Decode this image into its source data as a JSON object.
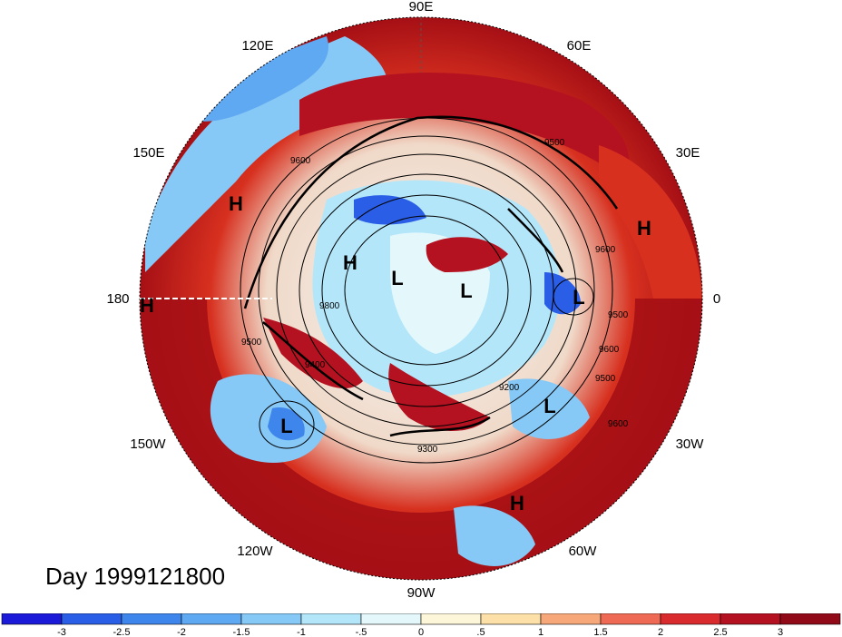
{
  "map": {
    "projection": "north polar stereographic",
    "longitude_labels": [
      "90E",
      "60E",
      "30E",
      "0",
      "30W",
      "60W",
      "90W",
      "120W",
      "150W",
      "180",
      "150E",
      "120E"
    ],
    "highs": [
      "H",
      "H",
      "H",
      "H",
      "H"
    ],
    "lows": [
      "L",
      "L",
      "L",
      "L",
      "L"
    ],
    "contour_labels": [
      "9500",
      "9600",
      "9500",
      "9600",
      "9500",
      "9400",
      "9600",
      "9300",
      "9200",
      "9500",
      "9600",
      "9800"
    ],
    "colors": {
      "strong_positive": "#a50f15",
      "positive": "#d7301f",
      "neutral": "#f7f7f7",
      "negative": "#74add1",
      "strong_negative": "#2c3bd6"
    }
  },
  "title": {
    "day_label": "Day 1999121800"
  },
  "colorbar": {
    "tick_labels": [
      "-3",
      "-2.5",
      "-2",
      "-1.5",
      "-1",
      "-.5",
      "0",
      ".5",
      "1",
      "1.5",
      "2",
      "2.5",
      "3"
    ],
    "colors": [
      "#1a1ad8",
      "#2a5ee6",
      "#3e86ec",
      "#5fa8f2",
      "#86c8f6",
      "#b4e6fa",
      "#e4f8fc",
      "#fdf6d8",
      "#fde0a8",
      "#f7a87a",
      "#ee6a54",
      "#d92a2e",
      "#b41220",
      "#900a18"
    ]
  }
}
